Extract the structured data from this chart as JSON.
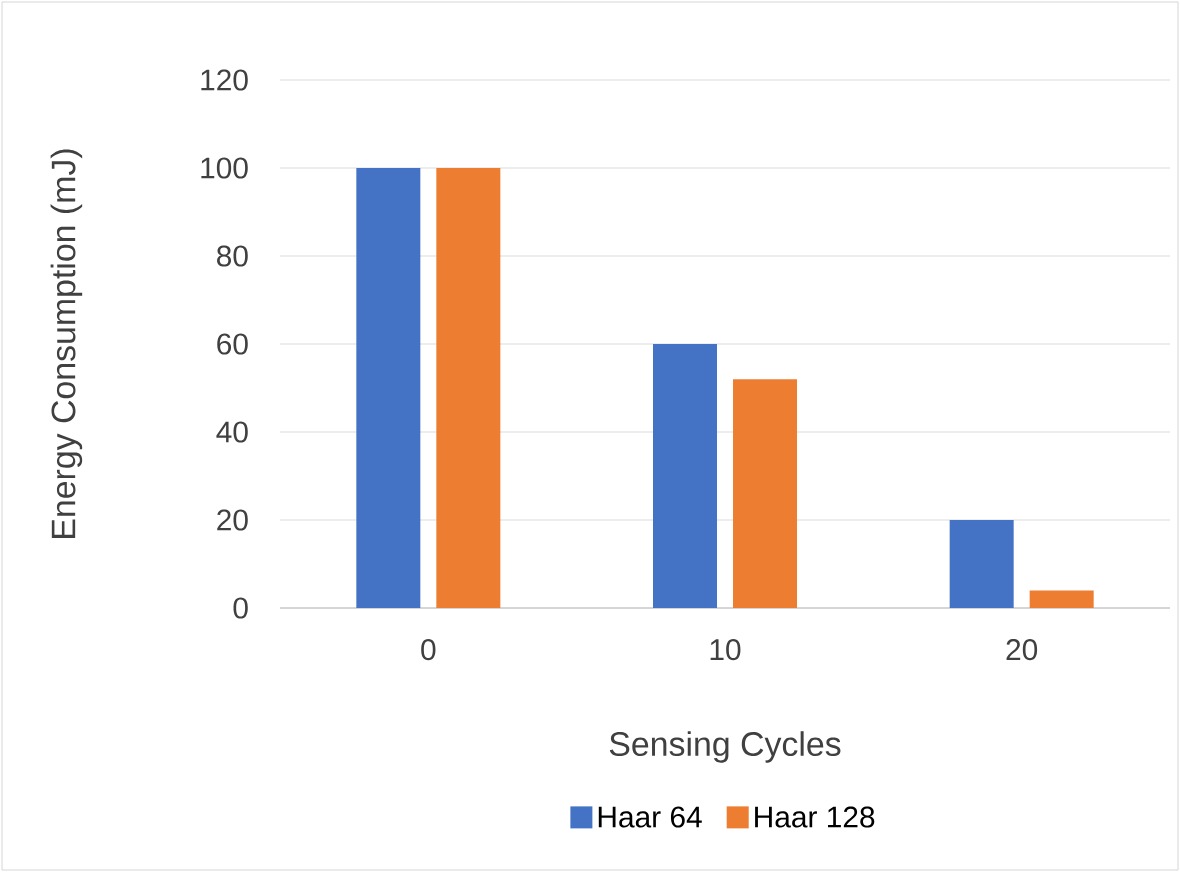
{
  "chart_data": {
    "type": "bar",
    "xlabel": "Sensing Cycles",
    "ylabel": "Energy Consumption (mJ)",
    "categories": [
      "0",
      "10",
      "20"
    ],
    "series": [
      {
        "name": "Haar 64",
        "color": "#4472c4",
        "values": [
          100,
          60,
          20
        ]
      },
      {
        "name": "Haar 128",
        "color": "#ed7d31",
        "values": [
          100,
          52,
          4
        ]
      }
    ],
    "ylim": [
      0,
      120
    ],
    "yticks": [
      0,
      20,
      40,
      60,
      80,
      100,
      120
    ],
    "grid": "y",
    "legend": "bottom"
  }
}
